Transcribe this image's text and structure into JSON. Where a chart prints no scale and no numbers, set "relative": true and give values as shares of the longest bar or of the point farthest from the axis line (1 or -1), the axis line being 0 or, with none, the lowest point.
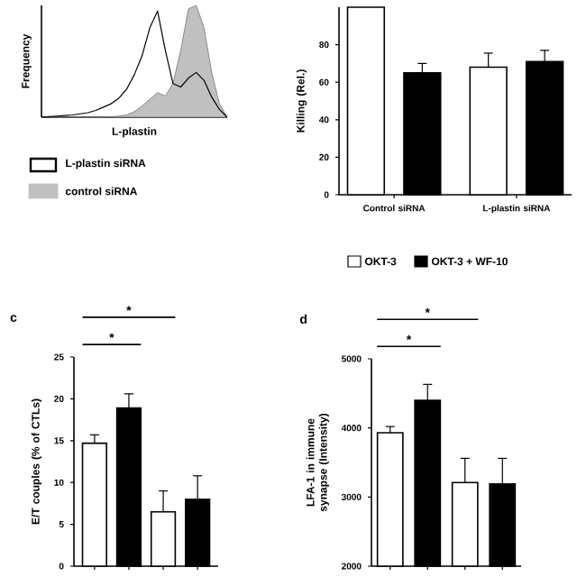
{
  "chart_data": [
    {
      "type": "area",
      "relative": true,
      "xlabel": "L-plastin",
      "ylabel": "Frequency",
      "legend": "bottom",
      "categories": [
        null,
        null,
        null,
        null,
        null,
        null,
        null,
        null,
        null,
        null,
        null,
        null,
        null,
        null,
        null,
        null,
        null,
        null,
        null,
        null,
        null,
        null,
        null,
        null,
        null
      ],
      "series": [
        {
          "name": "L-plastin siRNA",
          "type": "line",
          "color": "#000000",
          "values": [
            0,
            0.005,
            0.01,
            0.015,
            0.02,
            0.03,
            0.04,
            0.06,
            0.09,
            0.12,
            0.17,
            0.25,
            0.38,
            0.55,
            0.8,
            0.95,
            0.6,
            0.3,
            0.27,
            0.35,
            0.4,
            0.33,
            0.18,
            0.07,
            0
          ]
        },
        {
          "name": "control siRNA",
          "type": "area",
          "color": "#c0c0c0",
          "values": [
            0,
            0,
            0,
            0,
            0,
            0,
            0,
            0,
            0,
            0.005,
            0.01,
            0.02,
            0.05,
            0.1,
            0.16,
            0.22,
            0.19,
            0.3,
            0.6,
            0.97,
            1.0,
            0.8,
            0.4,
            0.12,
            0
          ]
        }
      ]
    },
    {
      "type": "bar",
      "ylabel": "Killing (Rel.)",
      "legend": "bottom",
      "categories": [
        "Control siRNA",
        "L-plastin siRNA"
      ],
      "ylim": [
        0,
        100
      ],
      "yticks": [
        0,
        20,
        40,
        60,
        80
      ],
      "series": [
        {
          "name": "OKT-3",
          "color": "#ffffff",
          "values": [
            100,
            68
          ],
          "errors": [
            null,
            7.5
          ]
        },
        {
          "name": "OKT-3 + WF-10",
          "color": "#000000",
          "values": [
            65,
            71
          ],
          "errors": [
            5,
            6
          ]
        }
      ]
    },
    {
      "type": "bar",
      "title": "c",
      "ylabel": "E/T couples (% of CTLs)",
      "categories": [
        null,
        null,
        null,
        null
      ],
      "values": [
        14.7,
        18.9,
        6.5,
        8.0
      ],
      "errors": [
        1.0,
        1.7,
        2.5,
        2.8
      ],
      "colors": [
        "#ffffff",
        "#000000",
        "#ffffff",
        "#000000"
      ],
      "ylim": [
        0,
        25
      ],
      "yticks": [
        0,
        5,
        10,
        15,
        20,
        25
      ],
      "annotations": [
        "*",
        "*"
      ]
    },
    {
      "type": "bar",
      "title": "d",
      "ylabel": "LFA-1 in immune synapse (Intensity)",
      "categories": [
        null,
        null,
        null,
        null
      ],
      "values": [
        3930,
        4400,
        3210,
        3190
      ],
      "errors": [
        90,
        230,
        350,
        370
      ],
      "colors": [
        "#ffffff",
        "#000000",
        "#ffffff",
        "#000000"
      ],
      "ylim": [
        2000,
        5000
      ],
      "yticks": [
        2000,
        3000,
        4000,
        5000
      ],
      "annotations": [
        "*",
        "*"
      ]
    }
  ]
}
